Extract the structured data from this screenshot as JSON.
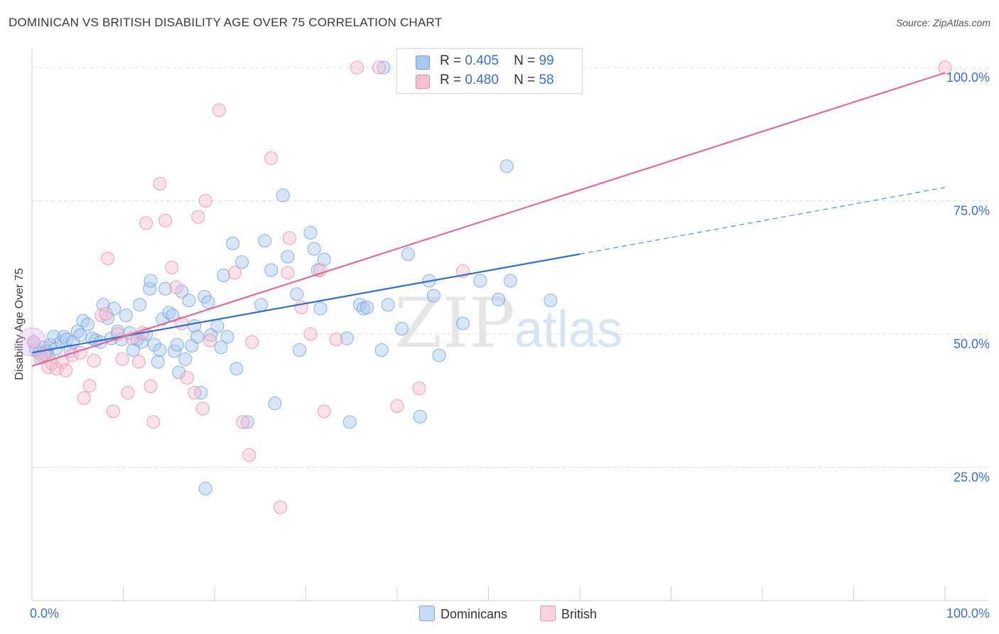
{
  "title": "DOMINICAN VS BRITISH DISABILITY AGE OVER 75 CORRELATION CHART",
  "source": "Source: ZipAtlas.com",
  "watermark": {
    "zip": "ZIP",
    "atlas": "atlas"
  },
  "legend": {
    "rows": [
      {
        "r_label": "R =",
        "r_value": "0.405",
        "n_label": "N =",
        "n_value": "99",
        "color": "#a9c8f0",
        "border": "#6f9fe0"
      },
      {
        "r_label": "R =",
        "r_value": "0.480",
        "n_label": "N =",
        "n_value": "58",
        "color": "#f7bfd0",
        "border": "#e98aa8"
      }
    ]
  },
  "bottom_legend": [
    "Dominicans",
    "British"
  ],
  "chart_data": {
    "type": "scatter",
    "title": "DOMINICAN VS BRITISH DISABILITY AGE OVER 75 CORRELATION CHART",
    "xlabel": "",
    "ylabel": "Disability Age Over 75",
    "xlim": [
      0,
      100
    ],
    "ylim": [
      0,
      102
    ],
    "x_tick_labels": [
      "0.0%",
      "100.0%"
    ],
    "y_tick_labels": [
      "25.0%",
      "50.0%",
      "75.0%",
      "100.0%"
    ],
    "y_ticks": [
      25,
      50,
      75,
      100
    ],
    "grid": true,
    "legend_position": "top-center",
    "series": [
      {
        "name": "Dominicans",
        "color": "#6f9fe0",
        "fill": "#a9c8f0",
        "points": [
          [
            0.4,
            47.0
          ],
          [
            0.8,
            46.5
          ],
          [
            1.0,
            46.0
          ],
          [
            1.3,
            47.5
          ],
          [
            1.6,
            46.8
          ],
          [
            2.0,
            48.0
          ],
          [
            2.4,
            49.5
          ],
          [
            2.6,
            47.2
          ],
          [
            3.2,
            48.5
          ],
          [
            3.5,
            49.5
          ],
          [
            3.8,
            49.0
          ],
          [
            4.2,
            46.8
          ],
          [
            4.5,
            48.5
          ],
          [
            5.0,
            50.5
          ],
          [
            5.3,
            49.8
          ],
          [
            5.6,
            52.5
          ],
          [
            6.1,
            51.8
          ],
          [
            6.6,
            49.2
          ],
          [
            7.0,
            48.8
          ],
          [
            7.5,
            48.5
          ],
          [
            7.8,
            55.5
          ],
          [
            8.3,
            53.0
          ],
          [
            8.7,
            49.2
          ],
          [
            9.0,
            54.8
          ],
          [
            9.4,
            50.5
          ],
          [
            9.8,
            49.0
          ],
          [
            10.3,
            53.5
          ],
          [
            10.7,
            50.2
          ],
          [
            11.1,
            47.0
          ],
          [
            11.5,
            49.0
          ],
          [
            11.8,
            55.5
          ],
          [
            12.0,
            48.5
          ],
          [
            12.5,
            50.0
          ],
          [
            12.9,
            58.5
          ],
          [
            13.0,
            60.0
          ],
          [
            13.4,
            48.0
          ],
          [
            13.8,
            44.8
          ],
          [
            14.0,
            47.0
          ],
          [
            14.3,
            52.8
          ],
          [
            14.6,
            58.5
          ],
          [
            15.0,
            54.0
          ],
          [
            15.4,
            53.5
          ],
          [
            15.6,
            46.8
          ],
          [
            15.9,
            48.0
          ],
          [
            16.1,
            42.8
          ],
          [
            16.4,
            58.0
          ],
          [
            16.8,
            45.3
          ],
          [
            17.2,
            56.3
          ],
          [
            17.5,
            47.8
          ],
          [
            17.8,
            51.5
          ],
          [
            18.1,
            49.5
          ],
          [
            18.5,
            39.0
          ],
          [
            18.9,
            57.0
          ],
          [
            19.3,
            56.0
          ],
          [
            19.6,
            49.8
          ],
          [
            20.3,
            51.5
          ],
          [
            20.7,
            47.5
          ],
          [
            21.0,
            61.0
          ],
          [
            21.4,
            49.5
          ],
          [
            22.0,
            67.0
          ],
          [
            22.4,
            43.5
          ],
          [
            23.0,
            63.5
          ],
          [
            23.6,
            33.5
          ],
          [
            25.1,
            55.5
          ],
          [
            25.5,
            67.5
          ],
          [
            26.2,
            62.0
          ],
          [
            26.6,
            37.0
          ],
          [
            27.5,
            76.0
          ],
          [
            28.0,
            64.5
          ],
          [
            29.0,
            57.5
          ],
          [
            29.3,
            47.0
          ],
          [
            30.5,
            69.0
          ],
          [
            30.9,
            66.0
          ],
          [
            31.3,
            62.0
          ],
          [
            31.6,
            54.8
          ],
          [
            32.0,
            64.0
          ],
          [
            34.5,
            49.2
          ],
          [
            34.8,
            33.5
          ],
          [
            35.9,
            55.5
          ],
          [
            36.3,
            54.8
          ],
          [
            36.7,
            55.0
          ],
          [
            38.3,
            47.0
          ],
          [
            39.0,
            55.5
          ],
          [
            40.5,
            51.0
          ],
          [
            41.2,
            65.0
          ],
          [
            42.5,
            34.5
          ],
          [
            43.5,
            60.0
          ],
          [
            44.0,
            57.2
          ],
          [
            44.6,
            46.0
          ],
          [
            47.2,
            52.0
          ],
          [
            49.1,
            60.0
          ],
          [
            51.1,
            56.5
          ],
          [
            52.4,
            60.0
          ],
          [
            52.0,
            81.5
          ],
          [
            56.8,
            56.3
          ],
          [
            38.5,
            100.0
          ],
          [
            19.0,
            21.0
          ],
          [
            0.2,
            48.5
          ],
          [
            1.8,
            45.8
          ]
        ]
      },
      {
        "name": "British",
        "color": "#e98aa8",
        "fill": "#f7bfd0",
        "points": [
          [
            0.2,
            48.5
          ],
          [
            0.9,
            45.5
          ],
          [
            1.4,
            46.2
          ],
          [
            1.8,
            43.8
          ],
          [
            2.2,
            44.5
          ],
          [
            2.7,
            43.5
          ],
          [
            3.3,
            44.8
          ],
          [
            3.7,
            43.2
          ],
          [
            4.4,
            46.0
          ],
          [
            5.3,
            46.5
          ],
          [
            5.7,
            38.0
          ],
          [
            6.3,
            40.3
          ],
          [
            6.8,
            45.0
          ],
          [
            7.6,
            53.5
          ],
          [
            8.1,
            53.8
          ],
          [
            8.3,
            64.2
          ],
          [
            8.9,
            35.5
          ],
          [
            9.4,
            50.0
          ],
          [
            9.9,
            45.3
          ],
          [
            10.5,
            39.0
          ],
          [
            11.0,
            49.2
          ],
          [
            11.7,
            44.8
          ],
          [
            12.1,
            50.2
          ],
          [
            12.5,
            70.8
          ],
          [
            13.0,
            40.2
          ],
          [
            13.3,
            33.5
          ],
          [
            14.0,
            78.2
          ],
          [
            14.6,
            71.3
          ],
          [
            15.3,
            62.5
          ],
          [
            15.8,
            58.8
          ],
          [
            16.4,
            52.0
          ],
          [
            17.0,
            41.8
          ],
          [
            17.8,
            39.0
          ],
          [
            18.2,
            72.0
          ],
          [
            18.7,
            36.0
          ],
          [
            19.0,
            75.0
          ],
          [
            19.5,
            48.8
          ],
          [
            20.5,
            92.0
          ],
          [
            22.2,
            61.5
          ],
          [
            23.1,
            33.5
          ],
          [
            23.8,
            27.3
          ],
          [
            24.1,
            48.5
          ],
          [
            26.2,
            83.0
          ],
          [
            27.2,
            17.5
          ],
          [
            28.0,
            61.5
          ],
          [
            28.2,
            68.0
          ],
          [
            29.5,
            55.0
          ],
          [
            30.5,
            50.0
          ],
          [
            31.6,
            62.0
          ],
          [
            32.0,
            35.5
          ],
          [
            35.6,
            100.0
          ],
          [
            38.0,
            100.0
          ],
          [
            40.0,
            36.5
          ],
          [
            42.4,
            39.8
          ],
          [
            47.2,
            61.8
          ],
          [
            50.8,
            100.0
          ],
          [
            100.0,
            100.0
          ],
          [
            33.3,
            49.0
          ]
        ]
      }
    ],
    "trendlines": [
      {
        "series": "Dominicans",
        "color": "#2f6fd0",
        "from": [
          0,
          46.5
        ],
        "to": [
          60,
          65.0
        ],
        "dashed_to": [
          100,
          77.5
        ]
      },
      {
        "series": "British",
        "color": "#e46a96",
        "from": [
          0,
          44.0
        ],
        "to": [
          100,
          99.0
        ]
      }
    ]
  }
}
